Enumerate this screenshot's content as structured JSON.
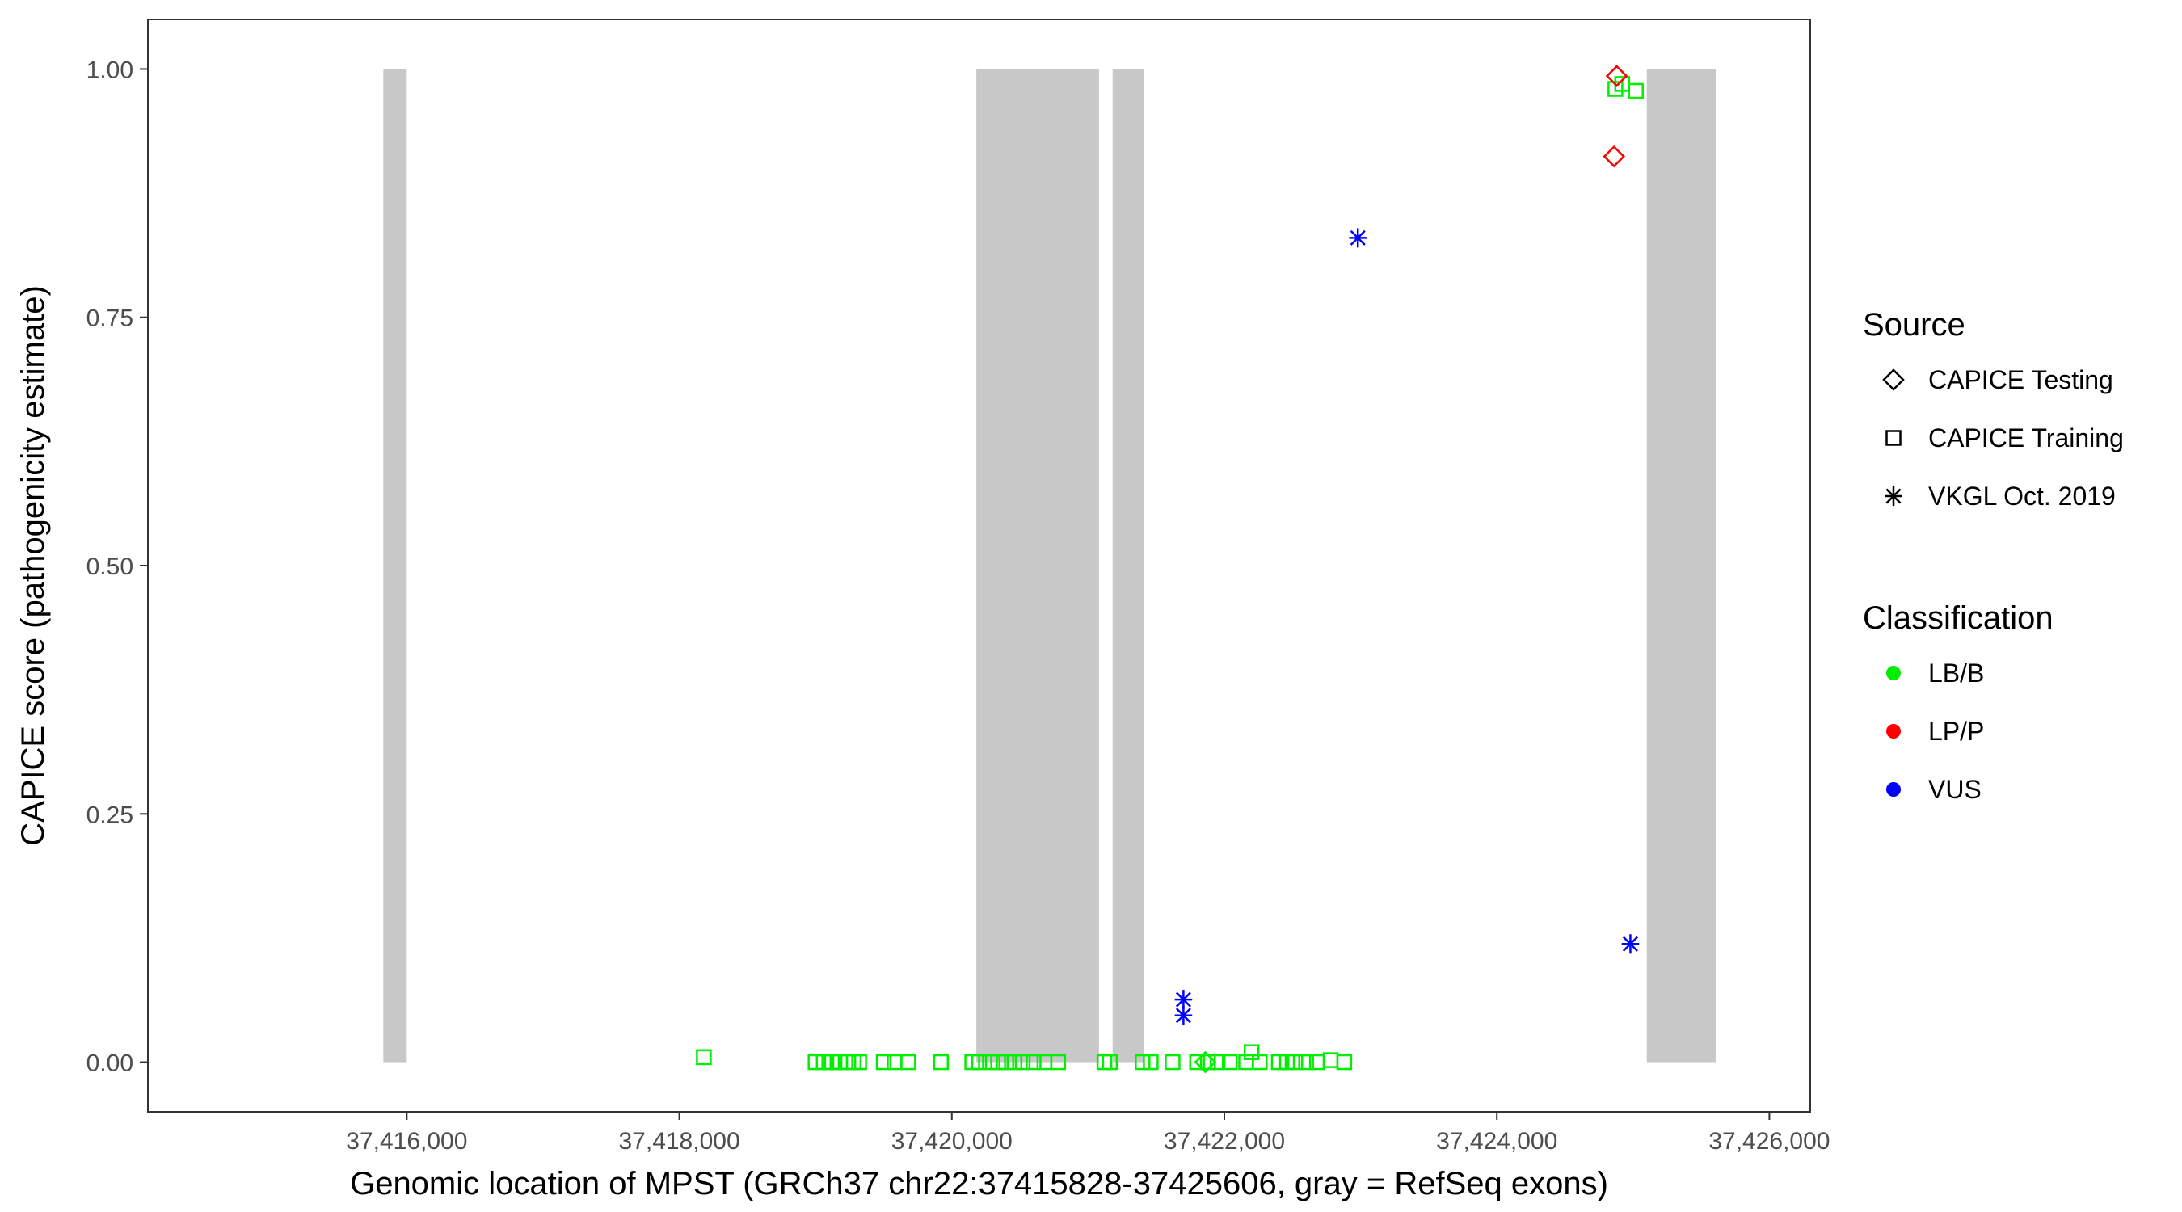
{
  "chart_data": {
    "type": "scatter",
    "title": "",
    "xlabel": "Genomic location of MPST (GRCh37 chr22:37415828-37425606, gray = RefSeq exons)",
    "ylabel": "CAPICE score (pathogenicity estimate)",
    "xlim": [
      37414100,
      37426300
    ],
    "ylim": [
      -0.05,
      1.05
    ],
    "x_ticks": [
      37416000,
      37418000,
      37420000,
      37422000,
      37424000,
      37426000
    ],
    "x_tick_labels": [
      "37,416,000",
      "37,418,000",
      "37,420,000",
      "37,422,000",
      "37,424,000",
      "37,426,000"
    ],
    "y_ticks": [
      0,
      0.25,
      0.5,
      0.75,
      1.0
    ],
    "y_tick_labels": [
      "0.00",
      "0.25",
      "0.50",
      "0.75",
      "1.00"
    ],
    "grid": false,
    "exons": [
      {
        "start": 37415828,
        "end": 37416000
      },
      {
        "start": 37420180,
        "end": 37421080
      },
      {
        "start": 37421180,
        "end": 37421410
      },
      {
        "start": 37425100,
        "end": 37425606
      }
    ],
    "exon_color": "#c8c8c8",
    "legend_position": "right",
    "legend_source": {
      "title": "Source",
      "items": [
        {
          "label": "CAPICE Testing",
          "shape": "diamond"
        },
        {
          "label": "CAPICE Training",
          "shape": "square"
        },
        {
          "label": "VKGL Oct. 2019",
          "shape": "asterisk"
        }
      ]
    },
    "legend_classification": {
      "title": "Classification",
      "items": [
        {
          "label": "LB/B",
          "color": "#00ee00"
        },
        {
          "label": "LP/P",
          "color": "#ff0000"
        },
        {
          "label": "VUS",
          "color": "#0000ff"
        }
      ]
    },
    "series": [
      {
        "source": "CAPICE Training",
        "classification": "LB/B",
        "points": [
          [
            37418180,
            0.005
          ],
          [
            37419000,
            0.0
          ],
          [
            37419060,
            0.0
          ],
          [
            37419120,
            0.0
          ],
          [
            37419180,
            0.0
          ],
          [
            37419240,
            0.0
          ],
          [
            37419280,
            0.0
          ],
          [
            37419320,
            0.0
          ],
          [
            37419500,
            0.0
          ],
          [
            37419580,
            0.0
          ],
          [
            37419680,
            0.0
          ],
          [
            37419920,
            0.0
          ],
          [
            37420150,
            0.0
          ],
          [
            37420200,
            0.0
          ],
          [
            37420280,
            0.0
          ],
          [
            37420340,
            0.0
          ],
          [
            37420400,
            0.0
          ],
          [
            37420460,
            0.0
          ],
          [
            37420520,
            0.0
          ],
          [
            37420600,
            0.0
          ],
          [
            37420680,
            0.0
          ],
          [
            37420780,
            0.0
          ],
          [
            37421120,
            0.0
          ],
          [
            37421160,
            0.0
          ],
          [
            37421400,
            0.0
          ],
          [
            37421460,
            0.0
          ],
          [
            37421620,
            0.0
          ],
          [
            37421800,
            0.0
          ],
          [
            37421880,
            0.0
          ],
          [
            37421950,
            0.0
          ],
          [
            37422040,
            0.0
          ],
          [
            37422160,
            0.0
          ],
          [
            37422200,
            0.01
          ],
          [
            37422260,
            0.0
          ],
          [
            37422400,
            0.0
          ],
          [
            37422460,
            0.0
          ],
          [
            37422520,
            0.0
          ],
          [
            37422600,
            0.0
          ],
          [
            37422680,
            0.0
          ],
          [
            37422780,
            0.002
          ],
          [
            37422880,
            0.0
          ],
          [
            37424870,
            0.98
          ],
          [
            37424920,
            0.985
          ],
          [
            37425020,
            0.978
          ]
        ]
      },
      {
        "source": "CAPICE Testing",
        "classification": "LB/B",
        "points": [
          [
            37421860,
            0.0
          ]
        ]
      },
      {
        "source": "CAPICE Testing",
        "classification": "LP/P",
        "points": [
          [
            37424860,
            0.912
          ],
          [
            37424880,
            0.993
          ]
        ]
      },
      {
        "source": "VKGL Oct. 2019",
        "classification": "VUS",
        "points": [
          [
            37421700,
            0.063
          ],
          [
            37421700,
            0.047
          ],
          [
            37422980,
            0.83
          ],
          [
            37424980,
            0.119
          ]
        ]
      }
    ]
  }
}
